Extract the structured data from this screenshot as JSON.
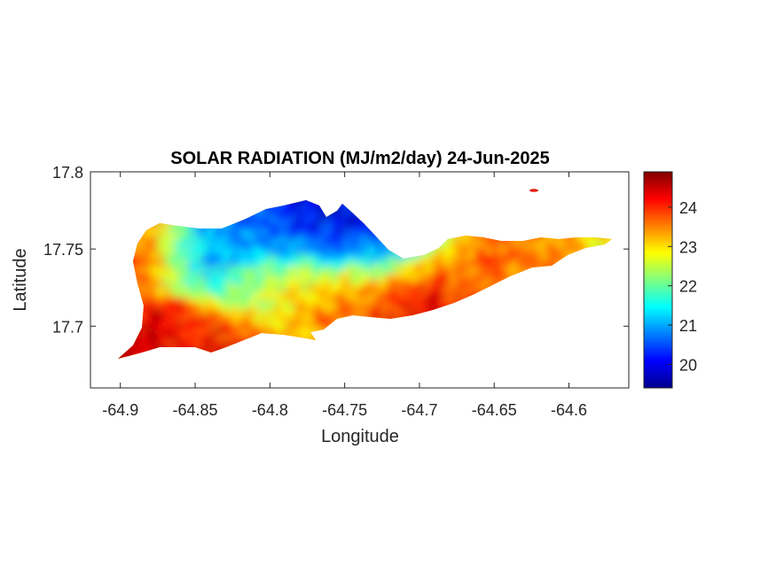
{
  "chart_data": {
    "type": "heatmap",
    "title": "SOLAR RADIATION (MJ/m2/day) 24-Jun-2025",
    "xlabel": "Longitude",
    "ylabel": "Latitude",
    "xlim": [
      -64.92,
      -64.56
    ],
    "ylim": [
      17.66,
      17.8
    ],
    "x_ticks": [
      -64.9,
      -64.85,
      -64.8,
      -64.75,
      -64.7,
      -64.65,
      -64.6
    ],
    "x_tick_labels": [
      "-64.9",
      "-64.85",
      "-64.8",
      "-64.75",
      "-64.7",
      "-64.65",
      "-64.6"
    ],
    "y_ticks": [
      17.7,
      17.75,
      17.8
    ],
    "y_tick_labels": [
      "17.7",
      "17.75",
      "17.8"
    ],
    "colorbar": {
      "range": [
        19.4,
        24.9
      ],
      "ticks": [
        20,
        21,
        22,
        23,
        24
      ],
      "tick_labels": [
        "20",
        "21",
        "22",
        "23",
        "24"
      ],
      "colormap": "jet"
    },
    "grid": false,
    "summary_regions": [
      {
        "lon": -64.89,
        "lat": 17.685,
        "value": 24.8
      },
      {
        "lon": -64.885,
        "lat": 17.75,
        "value": 24.2
      },
      {
        "lon": -64.86,
        "lat": 17.69,
        "value": 24.0
      },
      {
        "lon": -64.84,
        "lat": 17.75,
        "value": 20.5
      },
      {
        "lon": -64.81,
        "lat": 17.76,
        "value": 20.8
      },
      {
        "lon": -64.77,
        "lat": 17.768,
        "value": 20.0
      },
      {
        "lon": -64.745,
        "lat": 17.772,
        "value": 19.8
      },
      {
        "lon": -64.73,
        "lat": 17.748,
        "value": 21.2
      },
      {
        "lon": -64.8,
        "lat": 17.73,
        "value": 22.3
      },
      {
        "lon": -64.76,
        "lat": 17.72,
        "value": 23.5
      },
      {
        "lon": -64.7,
        "lat": 17.72,
        "value": 24.3
      },
      {
        "lon": -64.66,
        "lat": 17.735,
        "value": 23.6
      },
      {
        "lon": -64.62,
        "lat": 17.74,
        "value": 23.7
      },
      {
        "lon": -64.58,
        "lat": 17.752,
        "value": 22.9
      },
      {
        "lon": -64.625,
        "lat": 17.788,
        "value": 24.5
      }
    ]
  }
}
